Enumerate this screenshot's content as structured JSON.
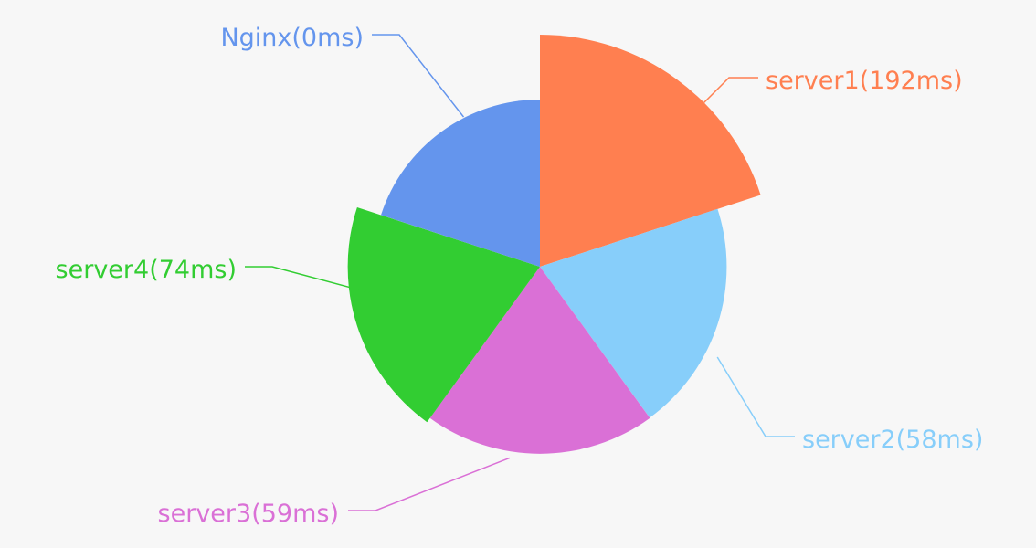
{
  "chart_data": {
    "type": "pie",
    "variant": "rose",
    "slices": [
      {
        "name": "server1",
        "label": "server1(192ms)",
        "value": 192,
        "color": "#ff7f50"
      },
      {
        "name": "server2",
        "label": "server2(58ms)",
        "value": 58,
        "color": "#87cefa"
      },
      {
        "name": "server3",
        "label": "server3(59ms)",
        "value": 59,
        "color": "#da70d6"
      },
      {
        "name": "server4",
        "label": "server4(74ms)",
        "value": 74,
        "color": "#32cd32"
      },
      {
        "name": "Nginx",
        "label": "Nginx(0ms)",
        "value": 0,
        "color": "#6495ed"
      }
    ],
    "legend": "none",
    "background": "#f7f7f7"
  }
}
